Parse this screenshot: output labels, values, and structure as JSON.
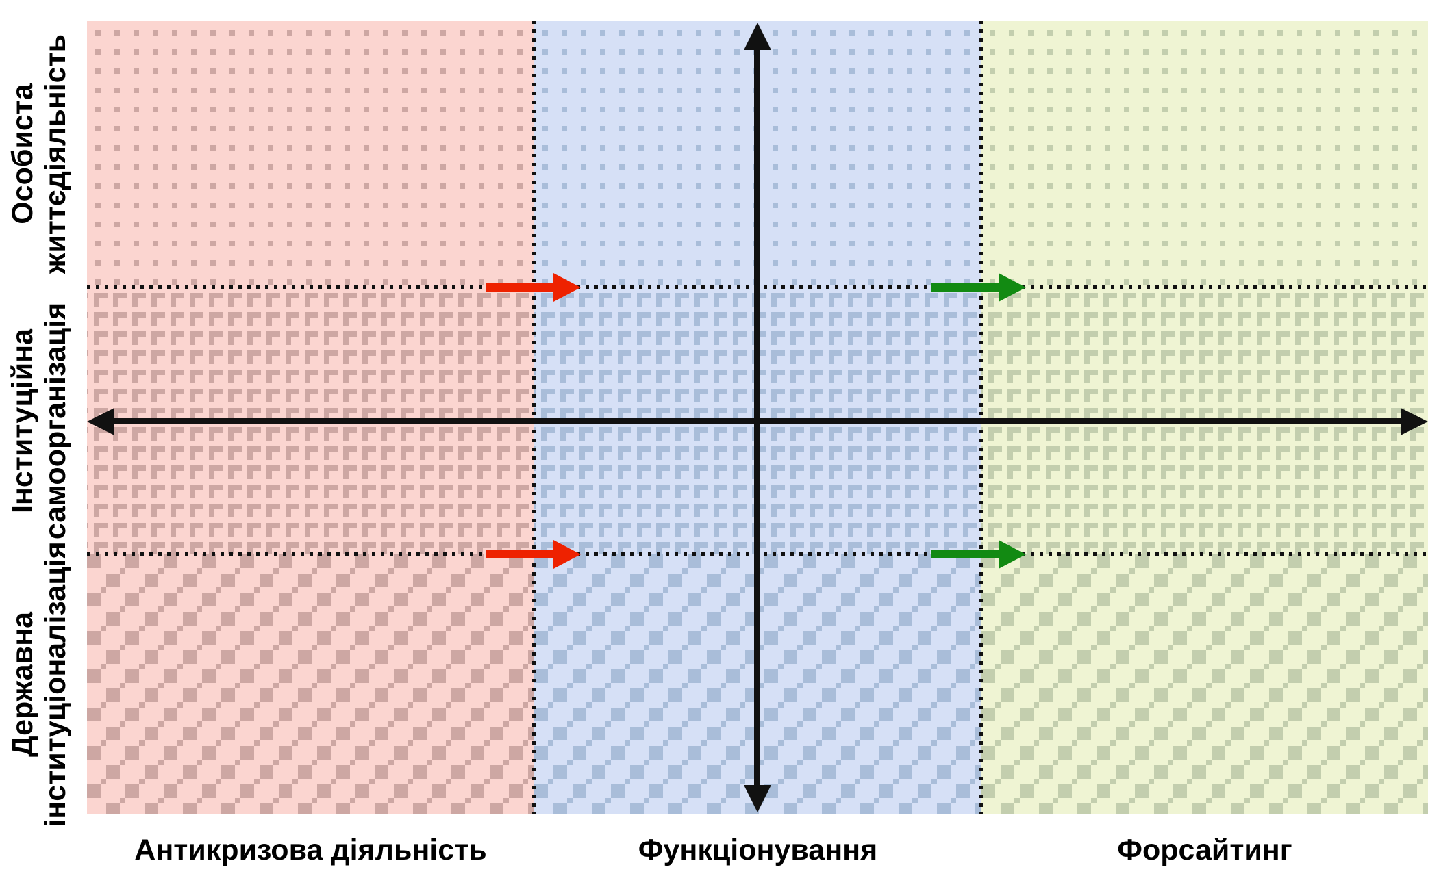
{
  "colors": {
    "pink-bg": "#fbd5d0",
    "pink-dk": "#cda7a3",
    "blue-bg": "#d6e0f6",
    "blue-dk": "#a9bdd9",
    "green-bg": "#eff4d3",
    "green-dk": "#c3ceae",
    "axis": "#111111",
    "red-arrow": "#ee2200",
    "green-arrow": "#128a12"
  },
  "matrix": {
    "type": "3x3 quadrant matrix with central crossed axes",
    "x_categories": [
      {
        "label": "Антикризова діяльність",
        "column_color": "#fbd5d0"
      },
      {
        "label": "Функціонування",
        "column_color": "#d6e0f6"
      },
      {
        "label": "Форсайтинг",
        "column_color": "#eff4d3"
      }
    ],
    "y_categories": [
      {
        "label": "Особиста\nжиттєдіяльність",
        "row_texture": "small-squares"
      },
      {
        "label": "Інституційна\nсамоорганізація",
        "row_texture": "corner-glyphs"
      },
      {
        "label": "Державна\nінституціоналізація",
        "row_texture": "woven-checker"
      }
    ],
    "separators": {
      "style": "black dotted lines between all columns and rows"
    },
    "axes": {
      "style": "solid black double-headed arrows crossing at center of middle cell"
    },
    "annotations": [
      {
        "name": "red-transition-arrow-upper",
        "color": "#ee2200",
        "direction": "right",
        "from_column": "Антикризова діяльність",
        "to_column": "Функціонування",
        "at_row_boundary": "Особиста життєдіяльність / Інституційна самоорганізація"
      },
      {
        "name": "red-transition-arrow-lower",
        "color": "#ee2200",
        "direction": "right",
        "from_column": "Антикризова діяльність",
        "to_column": "Функціонування",
        "at_row_boundary": "Інституційна самоорганізація / Державна інституціоналізація"
      },
      {
        "name": "green-transition-arrow-upper",
        "color": "#128a12",
        "direction": "right",
        "from_column": "Функціонування",
        "to_column": "Форсайтинг",
        "at_row_boundary": "Особиста життєдіяльність / Інституційна самоорганізація"
      },
      {
        "name": "green-transition-arrow-lower",
        "color": "#128a12",
        "direction": "right",
        "from_column": "Функціонування",
        "to_column": "Форсайтинг",
        "at_row_boundary": "Інституційна самоорганізація / Державна інституціоналізація"
      }
    ]
  }
}
